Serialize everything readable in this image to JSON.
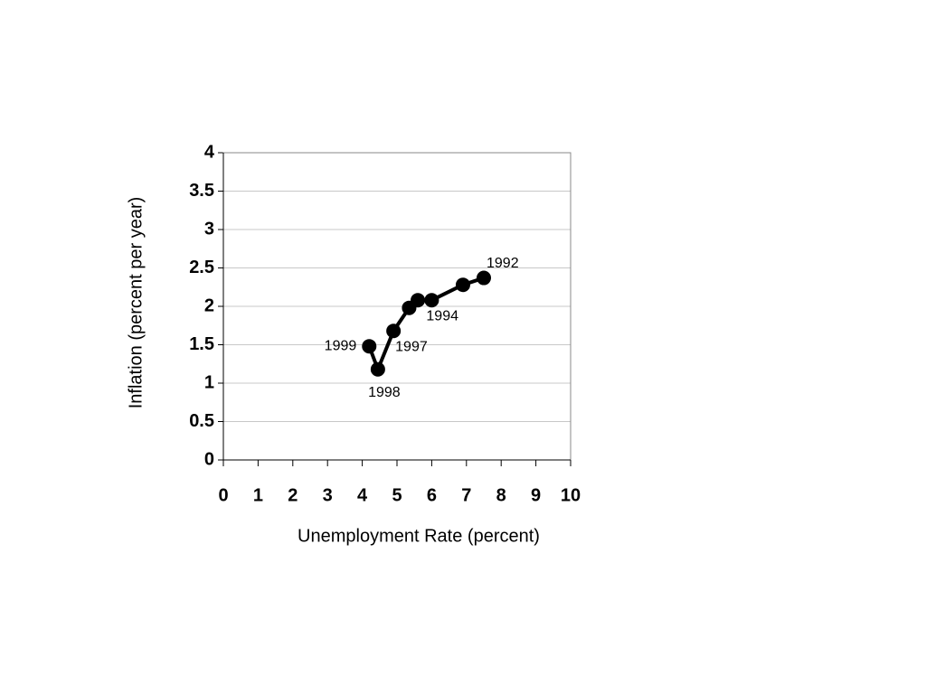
{
  "chart_data": {
    "type": "line",
    "x_label": "Unemployment Rate (percent)",
    "y_label": "Inflation (percent per year)",
    "x": [
      7.5,
      6.9,
      6.0,
      5.6,
      5.35,
      4.9,
      4.45,
      4.2
    ],
    "values": [
      2.37,
      2.28,
      2.08,
      2.08,
      1.98,
      1.68,
      1.18,
      1.48
    ],
    "point_labels": [
      "1992",
      null,
      "1994",
      null,
      null,
      "1997",
      "1998",
      "1999"
    ],
    "color": "#000000",
    "xlim": [
      0,
      10
    ],
    "xticks": [
      0,
      1,
      2,
      3,
      4,
      5,
      6,
      7,
      8,
      9,
      10
    ],
    "ylim": [
      0,
      4
    ],
    "yticks": [
      0,
      0.5,
      1,
      1.5,
      2,
      2.5,
      3,
      3.5,
      4
    ],
    "grid": true
  }
}
